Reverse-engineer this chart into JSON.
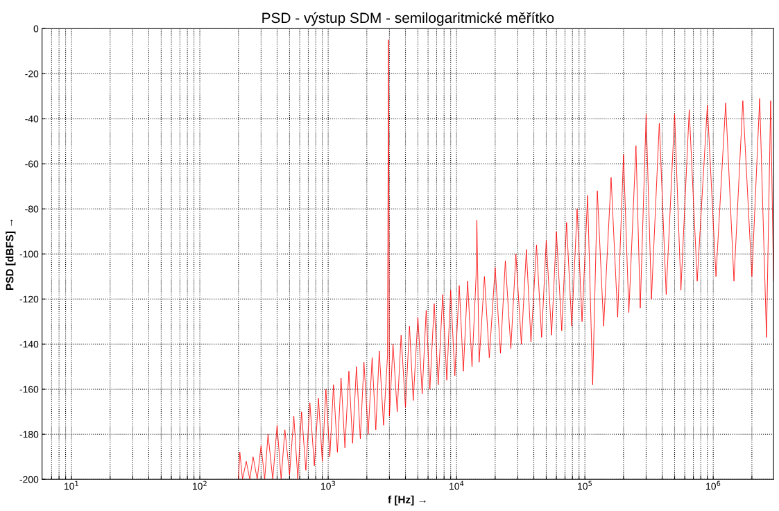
{
  "chart_data": {
    "type": "line",
    "title": "PSD - výstup SDM - semilogaritmické měřítko",
    "xlabel": "f [Hz] →",
    "ylabel": "PSD [dBFS] →",
    "log": "x",
    "grid": true,
    "line_style": "solid",
    "xlim": [
      5.9,
      2950000
    ],
    "ylim": [
      -200,
      0
    ],
    "xticks": [
      {
        "value": 7,
        "label": null
      },
      {
        "value": 8,
        "label": null
      },
      {
        "value": 9,
        "label": null
      },
      {
        "value": 10,
        "label": "10$^{1}$"
      },
      {
        "value": 20,
        "label": null
      },
      {
        "value": 30,
        "label": null
      },
      {
        "value": 40,
        "label": null
      },
      {
        "value": 50,
        "label": null
      },
      {
        "value": 60,
        "label": null
      },
      {
        "value": 70,
        "label": null
      },
      {
        "value": 80,
        "label": null
      },
      {
        "value": 90,
        "label": null
      },
      {
        "value": 100,
        "label": "10$^{2}$"
      },
      {
        "value": 200,
        "label": null
      },
      {
        "value": 300,
        "label": null
      },
      {
        "value": 400,
        "label": null
      },
      {
        "value": 500,
        "label": null
      },
      {
        "value": 600,
        "label": null
      },
      {
        "value": 700,
        "label": null
      },
      {
        "value": 800,
        "label": null
      },
      {
        "value": 900,
        "label": null
      },
      {
        "value": 1000,
        "label": "10$^{3}$"
      },
      {
        "value": 2000,
        "label": null
      },
      {
        "value": 3000,
        "label": null
      },
      {
        "value": 4000,
        "label": null
      },
      {
        "value": 5000,
        "label": null
      },
      {
        "value": 6000,
        "label": null
      },
      {
        "value": 7000,
        "label": null
      },
      {
        "value": 8000,
        "label": null
      },
      {
        "value": 9000,
        "label": null
      },
      {
        "value": 10000,
        "label": "10$^{4}$"
      },
      {
        "value": 20000,
        "label": null
      },
      {
        "value": 30000,
        "label": null
      },
      {
        "value": 40000,
        "label": null
      },
      {
        "value": 50000,
        "label": null
      },
      {
        "value": 60000,
        "label": null
      },
      {
        "value": 70000,
        "label": null
      },
      {
        "value": 80000,
        "label": null
      },
      {
        "value": 90000,
        "label": null
      },
      {
        "value": 100000,
        "label": "10$^{5}$"
      },
      {
        "value": 200000,
        "label": null
      },
      {
        "value": 300000,
        "label": null
      },
      {
        "value": 400000,
        "label": null
      },
      {
        "value": 500000,
        "label": null
      },
      {
        "value": 600000,
        "label": null
      },
      {
        "value": 700000,
        "label": null
      },
      {
        "value": 800000,
        "label": null
      },
      {
        "value": 900000,
        "label": null
      },
      {
        "value": 1000000,
        "label": "10$^{6}$"
      },
      {
        "value": 2000000,
        "label": null
      }
    ],
    "yticks": [
      -200,
      -180,
      -160,
      -140,
      -120,
      -100,
      -80,
      -60,
      -40,
      -20,
      0
    ],
    "series": [
      {
        "color": "#ff0000",
        "x": [
          200,
          205,
          215,
          230,
          245,
          260,
          280,
          300,
          320,
          340,
          370,
          400,
          430,
          460,
          500,
          540,
          580,
          620,
          670,
          720,
          780,
          840,
          900,
          960,
          1030,
          1100,
          1180,
          1260,
          1350,
          1450,
          1550,
          1660,
          1780,
          1900,
          2050,
          2200,
          2350,
          2500,
          2700,
          2900,
          2950,
          3000,
          3200,
          3450,
          3700,
          4000,
          4300,
          4600,
          5000,
          5400,
          5800,
          6200,
          6700,
          7200,
          7800,
          8400,
          9000,
          9700,
          10500,
          11300,
          12200,
          13200,
          14200,
          14400,
          15000,
          16500,
          18000,
          20000,
          22000,
          24000,
          26500,
          29000,
          32000,
          35000,
          38000,
          42000,
          46000,
          50000,
          55000,
          60000,
          66000,
          72000,
          79000,
          87000,
          95000,
          105000,
          115000,
          125000,
          140000,
          160000,
          180000,
          200000,
          220000,
          250000,
          270000,
          300000,
          330000,
          380000,
          430000,
          500000,
          560000,
          650000,
          750000,
          900000,
          1050000,
          1250000,
          1450000,
          1700000,
          2000000,
          2300000,
          2600000,
          2800000,
          2950000
        ],
        "values": [
          -200,
          -188,
          -200,
          -192,
          -200,
          -190,
          -200,
          -185,
          -200,
          -180,
          -200,
          -176,
          -200,
          -178,
          -198,
          -172,
          -200,
          -170,
          -196,
          -166,
          -194,
          -164,
          -192,
          -160,
          -190,
          -158,
          -188,
          -155,
          -186,
          -152,
          -184,
          -150,
          -182,
          -148,
          -180,
          -146,
          -178,
          -143,
          -176,
          -145,
          -5,
          -172,
          -140,
          -170,
          -136,
          -168,
          -132,
          -165,
          -128,
          -162,
          -125,
          -160,
          -122,
          -158,
          -118,
          -156,
          -116,
          -154,
          -114,
          -152,
          -112,
          -150,
          -110,
          -85,
          -148,
          -110,
          -146,
          -106,
          -144,
          -103,
          -142,
          -100,
          -140,
          -98,
          -139,
          -96,
          -137,
          -94,
          -136,
          -90,
          -134,
          -86,
          -132,
          -80,
          -130,
          -74,
          -158,
          -72,
          -132,
          -66,
          -128,
          -56,
          -126,
          -52,
          -124,
          -38,
          -120,
          -42,
          -118,
          -38,
          -116,
          -36,
          -112,
          -34,
          -110,
          -33,
          -112,
          -32,
          -110,
          -31,
          -137,
          -32,
          -112
        ]
      }
    ]
  }
}
